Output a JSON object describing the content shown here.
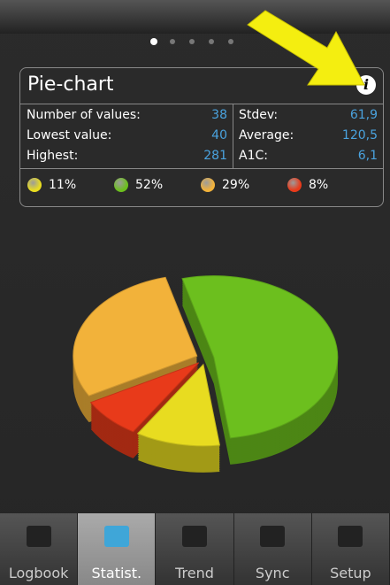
{
  "panel": {
    "title": "Pie-chart",
    "stats": [
      [
        "Number of values:",
        "38",
        "Stdev:",
        "61,9"
      ],
      [
        "Lowest value:",
        "40",
        "Average:",
        "120,5"
      ],
      [
        "Highest:",
        "281",
        "A1C:",
        "6,1"
      ]
    ]
  },
  "chart_data": {
    "type": "pie",
    "values": [
      11,
      52,
      29,
      8
    ],
    "value_labels": [
      "11%",
      "52%",
      "29%",
      "8%"
    ],
    "colors": [
      "#e8dc20",
      "#6cbf1e",
      "#f2b23a",
      "#e83a1a"
    ]
  },
  "tabs": [
    "Logbook",
    "Statist.",
    "Trend",
    "Sync",
    "Setup"
  ]
}
